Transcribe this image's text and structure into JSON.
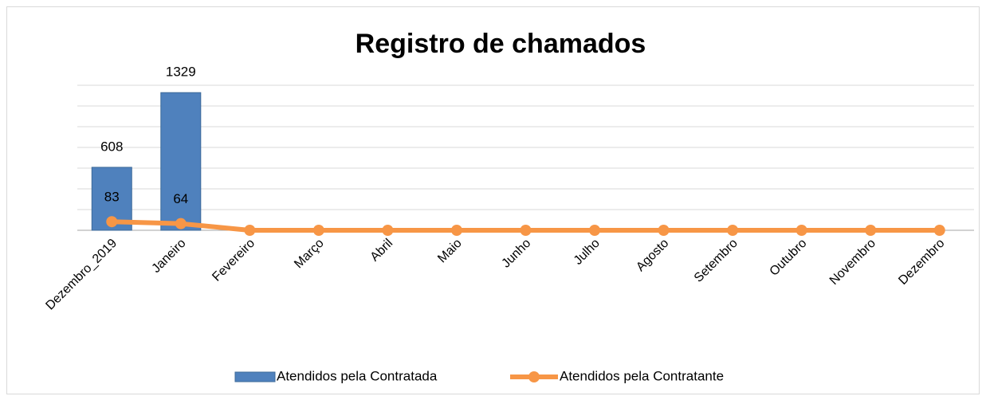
{
  "chart_data": {
    "type": "bar_line",
    "title": "Registro de chamados",
    "categories": [
      "Dezembro_2019",
      "Janeiro",
      "Fevereiro",
      "Março",
      "Abril",
      "Maio",
      "Junho",
      "Julho",
      "Agosto",
      "Setembro",
      "Outubro",
      "Novembro",
      "Dezembro"
    ],
    "series": [
      {
        "name": "Atendidos pela Contratada",
        "type": "bar",
        "color": "#4f81bd",
        "values": [
          608,
          1329,
          null,
          null,
          null,
          null,
          null,
          null,
          null,
          null,
          null,
          null,
          null
        ]
      },
      {
        "name": "Atendidos pela Contratante",
        "type": "line",
        "color": "#f79646",
        "values": [
          83,
          64,
          0,
          0,
          0,
          0,
          0,
          0,
          0,
          0,
          0,
          0,
          0
        ]
      }
    ],
    "ylim": [
      0,
      1400
    ],
    "yticks": [
      0,
      200,
      400,
      600,
      800,
      1000,
      1200,
      1400
    ],
    "grid": true,
    "legend": "bottom"
  }
}
